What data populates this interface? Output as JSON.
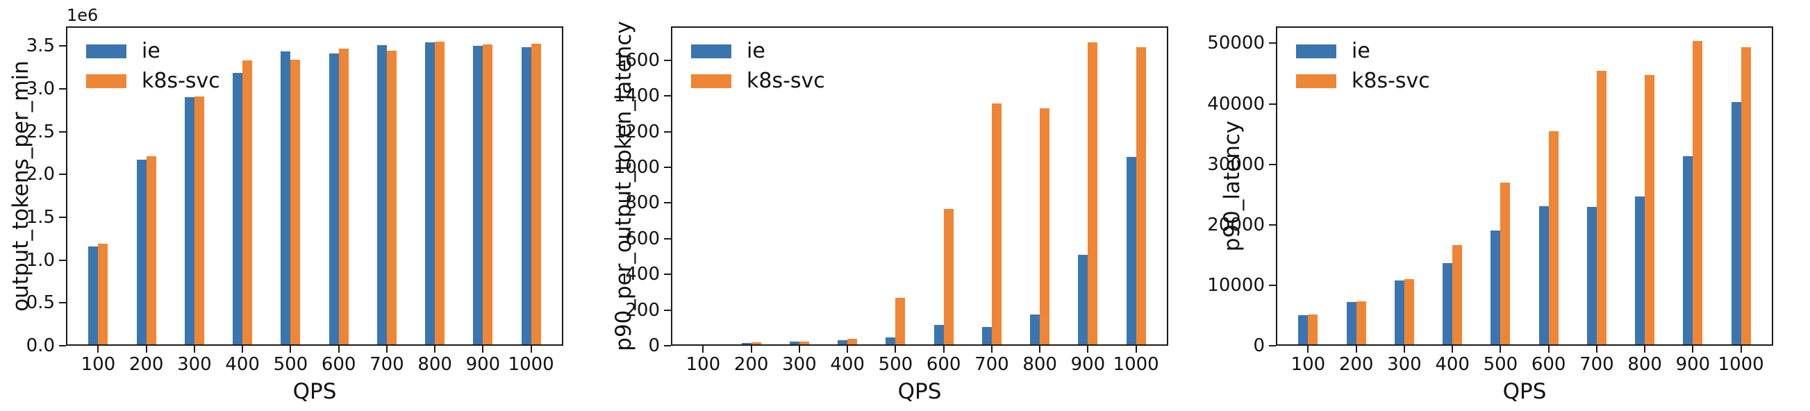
{
  "colors": {
    "ie": "#3b75af",
    "k8s-svc": "#ee8636",
    "axis": "#1a1a1a",
    "background": "#ffffff",
    "text": "#111111"
  },
  "legend": {
    "labels": [
      "ie",
      "k8s-svc"
    ]
  },
  "chart_data": [
    {
      "type": "bar",
      "title": "",
      "ylabel": "output_tokens_per_min",
      "xlabel": "QPS",
      "y_offset_text": "1e6",
      "categories": [
        "100",
        "200",
        "300",
        "400",
        "500",
        "600",
        "700",
        "800",
        "900",
        "1000"
      ],
      "series": [
        {
          "name": "ie",
          "values": [
            1160000,
            2170000,
            2900000,
            3190000,
            3440000,
            3410000,
            3510000,
            3540000,
            3500000,
            3490000
          ]
        },
        {
          "name": "k8s-svc",
          "values": [
            1190000,
            2210000,
            2910000,
            3330000,
            3340000,
            3470000,
            3450000,
            3550000,
            3520000,
            3530000
          ]
        }
      ],
      "ylim": [
        0,
        3730000
      ],
      "yticks": [
        0,
        500000,
        1000000,
        1500000,
        2000000,
        2500000,
        3000000,
        3500000
      ],
      "ytick_labels": [
        "0.0",
        "0.5",
        "1.0",
        "1.5",
        "2.0",
        "2.5",
        "3.0",
        "3.5"
      ],
      "legend_position": "upper left",
      "grid": false
    },
    {
      "type": "bar",
      "title": "",
      "ylabel": "p90_per_output_token_latency",
      "xlabel": "QPS",
      "y_offset_text": "",
      "categories": [
        "100",
        "200",
        "300",
        "400",
        "500",
        "600",
        "700",
        "800",
        "900",
        "1000"
      ],
      "series": [
        {
          "name": "ie",
          "values": [
            8,
            16,
            22,
            32,
            47,
            115,
            106,
            176,
            510,
            1060
          ]
        },
        {
          "name": "k8s-svc",
          "values": [
            9,
            18,
            24,
            38,
            268,
            765,
            1360,
            1330,
            1700,
            1675
          ]
        }
      ],
      "ylim": [
        0,
        1790
      ],
      "yticks": [
        0,
        200,
        400,
        600,
        800,
        1000,
        1200,
        1400,
        1600
      ],
      "ytick_labels": [
        "0",
        "200",
        "400",
        "600",
        "800",
        "1000",
        "1200",
        "1400",
        "1600"
      ],
      "legend_position": "upper left",
      "grid": false
    },
    {
      "type": "bar",
      "title": "",
      "ylabel": "p90_latency",
      "xlabel": "QPS",
      "y_offset_text": "",
      "categories": [
        "100",
        "200",
        "300",
        "400",
        "500",
        "600",
        "700",
        "800",
        "900",
        "1000"
      ],
      "series": [
        {
          "name": "ie",
          "values": [
            5100,
            7200,
            10800,
            13700,
            19000,
            23100,
            22900,
            24700,
            31300,
            40300
          ]
        },
        {
          "name": "k8s-svc",
          "values": [
            5200,
            7400,
            11000,
            16700,
            27000,
            35500,
            45400,
            44800,
            50400,
            49400
          ]
        }
      ],
      "ylim": [
        0,
        52800
      ],
      "yticks": [
        0,
        10000,
        20000,
        30000,
        40000,
        50000
      ],
      "ytick_labels": [
        "0",
        "10000",
        "20000",
        "30000",
        "40000",
        "50000"
      ],
      "legend_position": "upper left",
      "grid": false
    }
  ]
}
